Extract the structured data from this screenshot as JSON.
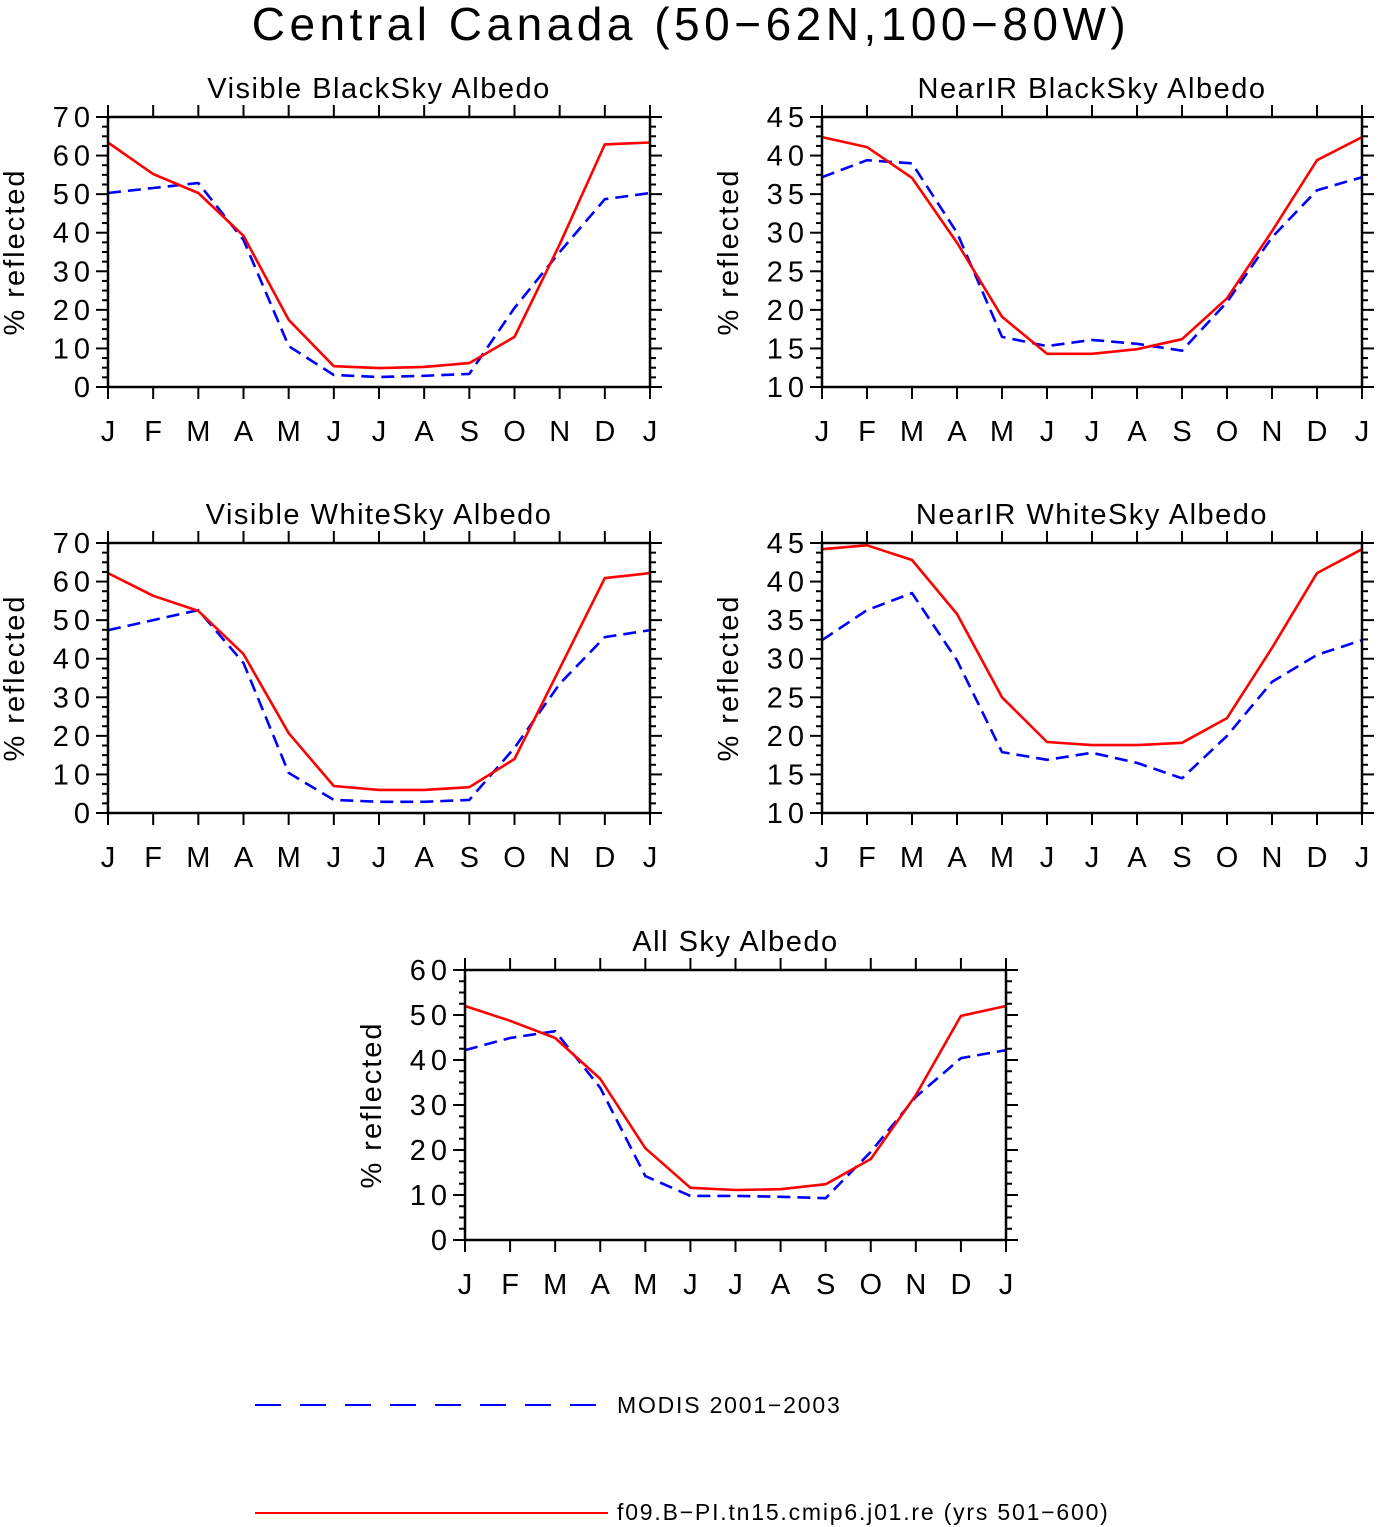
{
  "title": "Central Canada (50−62N,100−80W)",
  "legend": {
    "placement": "bottom",
    "entries": [
      {
        "label": "MODIS 2001−2003",
        "color": "#0000ff",
        "line_style": "dashed"
      },
      {
        "label": "f09.B−PI.tn15.cmip6.j01.re (yrs 501−600)",
        "color": "#ff0000",
        "line_style": "solid"
      }
    ]
  },
  "chart_data": [
    {
      "type": "line",
      "title": "Visible BlackSky Albedo",
      "ylabel": "% reflected",
      "categories": [
        "J",
        "F",
        "M",
        "A",
        "M",
        "J",
        "J",
        "A",
        "S",
        "O",
        "N",
        "D",
        "J"
      ],
      "ylim": [
        0,
        70
      ],
      "yticks": [
        0,
        10,
        20,
        30,
        40,
        50,
        60,
        70
      ],
      "grid": false,
      "series": [
        {
          "name": "MODIS 2001−2003",
          "color": "#0000ff",
          "line_style": "dashed",
          "values": [
            50.3,
            51.6,
            52.9,
            38.1,
            10.6,
            3.1,
            2.6,
            2.9,
            3.4,
            20.5,
            35.0,
            48.7,
            50.3
          ]
        },
        {
          "name": "f09.B−PI.tn15.cmip6.j01.re (yrs 501−600)",
          "color": "#ff0000",
          "line_style": "solid",
          "values": [
            63.4,
            55.2,
            50.3,
            39.2,
            17.4,
            5.4,
            4.9,
            5.2,
            6.2,
            13.0,
            37.0,
            62.9,
            63.4
          ]
        }
      ]
    },
    {
      "type": "line",
      "title": "NearIR BlackSky Albedo",
      "ylabel": "% reflected",
      "categories": [
        "J",
        "F",
        "M",
        "A",
        "M",
        "J",
        "J",
        "A",
        "S",
        "O",
        "N",
        "D",
        "J"
      ],
      "ylim": [
        10,
        45
      ],
      "yticks": [
        10,
        15,
        20,
        25,
        30,
        35,
        40,
        45
      ],
      "grid": false,
      "series": [
        {
          "name": "MODIS 2001−2003",
          "color": "#0000ff",
          "line_style": "dashed",
          "values": [
            37.2,
            39.4,
            39.0,
            30.0,
            16.5,
            15.3,
            16.1,
            15.6,
            14.7,
            21.0,
            29.4,
            35.5,
            37.2
          ]
        },
        {
          "name": "f09.B−PI.tn15.cmip6.j01.re (yrs 501−600)",
          "color": "#ff0000",
          "line_style": "solid",
          "values": [
            42.4,
            41.1,
            37.1,
            28.7,
            19.1,
            14.3,
            14.3,
            14.9,
            16.2,
            21.5,
            30.2,
            39.4,
            42.4
          ]
        }
      ]
    },
    {
      "type": "line",
      "title": "Visible WhiteSky Albedo",
      "ylabel": "% reflected",
      "categories": [
        "J",
        "F",
        "M",
        "A",
        "M",
        "J",
        "J",
        "A",
        "S",
        "O",
        "N",
        "D",
        "J"
      ],
      "ylim": [
        0,
        70
      ],
      "yticks": [
        0,
        10,
        20,
        30,
        40,
        50,
        60,
        70
      ],
      "grid": false,
      "series": [
        {
          "name": "MODIS 2001−2003",
          "color": "#0000ff",
          "line_style": "dashed",
          "values": [
            47.4,
            50.0,
            52.6,
            38.9,
            10.4,
            3.4,
            2.9,
            2.9,
            3.4,
            16.9,
            33.5,
            45.6,
            47.4
          ]
        },
        {
          "name": "f09.B−PI.tn15.cmip6.j01.re (yrs 501−600)",
          "color": "#ff0000",
          "line_style": "solid",
          "values": [
            62.2,
            56.3,
            52.4,
            41.2,
            20.7,
            7.0,
            6.0,
            6.0,
            6.7,
            14.0,
            37.5,
            60.9,
            62.2
          ]
        }
      ]
    },
    {
      "type": "line",
      "title": "NearIR WhiteSky Albedo",
      "ylabel": "% reflected",
      "categories": [
        "J",
        "F",
        "M",
        "A",
        "M",
        "J",
        "J",
        "A",
        "S",
        "O",
        "N",
        "D",
        "J"
      ],
      "ylim": [
        10,
        45
      ],
      "yticks": [
        10,
        15,
        20,
        25,
        30,
        35,
        40,
        45
      ],
      "grid": false,
      "series": [
        {
          "name": "MODIS 2001−2003",
          "color": "#0000ff",
          "line_style": "dashed",
          "values": [
            32.4,
            36.3,
            38.5,
            29.8,
            17.9,
            16.9,
            17.8,
            16.5,
            14.5,
            20.0,
            27.0,
            30.5,
            32.4
          ]
        },
        {
          "name": "f09.B−PI.tn15.cmip6.j01.re (yrs 501−600)",
          "color": "#ff0000",
          "line_style": "solid",
          "values": [
            44.2,
            44.7,
            42.8,
            35.8,
            25.0,
            19.2,
            18.8,
            18.8,
            19.1,
            22.3,
            31.4,
            41.1,
            44.2
          ]
        }
      ]
    },
    {
      "type": "line",
      "title": "All Sky Albedo",
      "ylabel": "% reflected",
      "categories": [
        "J",
        "F",
        "M",
        "A",
        "M",
        "J",
        "J",
        "A",
        "S",
        "O",
        "N",
        "D",
        "J"
      ],
      "ylim": [
        0,
        60
      ],
      "yticks": [
        0,
        10,
        20,
        30,
        40,
        50,
        60
      ],
      "grid": false,
      "series": [
        {
          "name": "MODIS 2001−2003",
          "color": "#0000ff",
          "line_style": "dashed",
          "values": [
            42.2,
            44.9,
            46.4,
            33.8,
            14.2,
            9.8,
            9.8,
            9.6,
            9.3,
            19.6,
            31.8,
            40.4,
            42.2
          ]
        },
        {
          "name": "f09.B−PI.tn15.cmip6.j01.re (yrs 501−600)",
          "color": "#ff0000",
          "line_style": "solid",
          "values": [
            52.0,
            48.7,
            44.9,
            35.8,
            20.4,
            11.6,
            11.1,
            11.3,
            12.4,
            18.0,
            32.2,
            49.8,
            52.0
          ]
        }
      ]
    }
  ]
}
